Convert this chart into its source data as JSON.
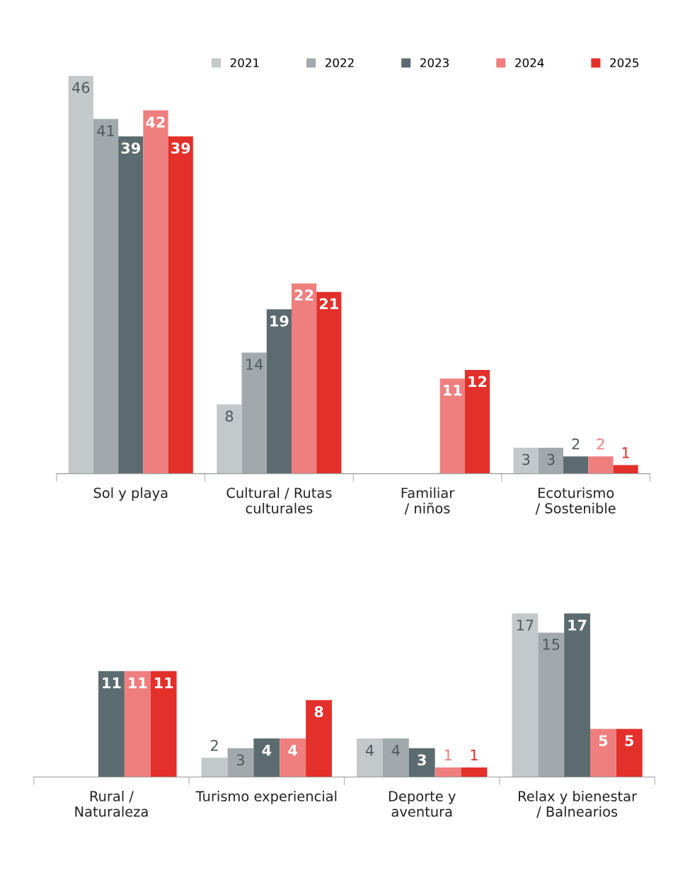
{
  "chart_data": [
    {
      "type": "bar",
      "categories": [
        "Sol y playa",
        "Cultural / Rutas\nculturales",
        "Familiar\n/ niños",
        "Ecoturismo\n/ Sostenible"
      ],
      "data_labels": true,
      "legend": "top right",
      "grid": false,
      "series": [
        {
          "name": "2021",
          "color": "#c3c9cb",
          "values": [
            46,
            8,
            null,
            3
          ]
        },
        {
          "name": "2022",
          "color": "#a1a9ac",
          "values": [
            41,
            14,
            null,
            3
          ]
        },
        {
          "name": "2023",
          "color": "#5c6b6f",
          "values": [
            39,
            19,
            null,
            2
          ]
        },
        {
          "name": "2024",
          "color": "#ef7f7e",
          "values": [
            42,
            22,
            11,
            2
          ]
        },
        {
          "name": "2025",
          "color": "#e3302a",
          "values": [
            39,
            21,
            12,
            1
          ]
        }
      ]
    },
    {
      "type": "bar",
      "categories": [
        "Rural /\nNaturaleza",
        "Turismo experiencial",
        "Deporte y\naventura",
        "Relax y bienestar\n/ Balnearios"
      ],
      "data_labels": true,
      "grid": false,
      "series": [
        {
          "color": "#c3c9cb",
          "values": [
            null,
            2,
            4,
            17
          ]
        },
        {
          "color": "#a1a9ac",
          "values": [
            null,
            3,
            4,
            15
          ]
        },
        {
          "color": "#5c6b6f",
          "values": [
            11,
            4,
            3,
            17
          ]
        },
        {
          "color": "#ef7f7e",
          "values": [
            11,
            4,
            1,
            5
          ]
        },
        {
          "color": "#e3302a",
          "values": [
            11,
            8,
            1,
            5
          ]
        }
      ]
    }
  ]
}
